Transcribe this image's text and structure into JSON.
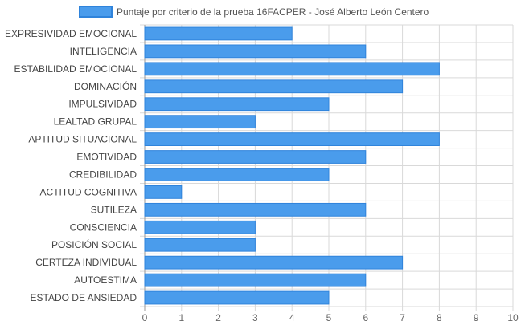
{
  "chart_data": {
    "type": "bar",
    "orientation": "horizontal",
    "legend_position": "top",
    "grid": true,
    "colors": {
      "bar_fill": "#4a9cec",
      "bar_stroke": "#2f83db",
      "grid": "#d9d9d9",
      "axis": "#999999"
    },
    "series": [
      {
        "name": "Puntaje por criterio de la prueba 16FACPER - José Alberto León Centero",
        "values": [
          4,
          6,
          8,
          7,
          5,
          3,
          8,
          6,
          5,
          1,
          6,
          3,
          3,
          7,
          6,
          5
        ]
      }
    ],
    "categories": [
      "EXPRESIVIDAD EMOCIONAL",
      "INTELIGENCIA",
      "ESTABILIDAD EMOCIONAL",
      "DOMINACIÓN",
      "IMPULSIVIDAD",
      "LEALTAD GRUPAL",
      "APTITUD SITUACIONAL",
      "EMOTIVIDAD",
      "CREDIBILIDAD",
      "ACTITUD COGNITIVA",
      "SUTILEZA",
      "CONSCIENCIA",
      "POSICIÓN SOCIAL",
      "CERTEZA INDIVIDUAL",
      "AUTOESTIMA",
      "ESTADO DE ANSIEDAD"
    ],
    "xlim": [
      0,
      10
    ],
    "x_ticks": [
      "0",
      "1",
      "2",
      "3",
      "4",
      "5",
      "6",
      "7",
      "8",
      "9",
      "10"
    ]
  }
}
